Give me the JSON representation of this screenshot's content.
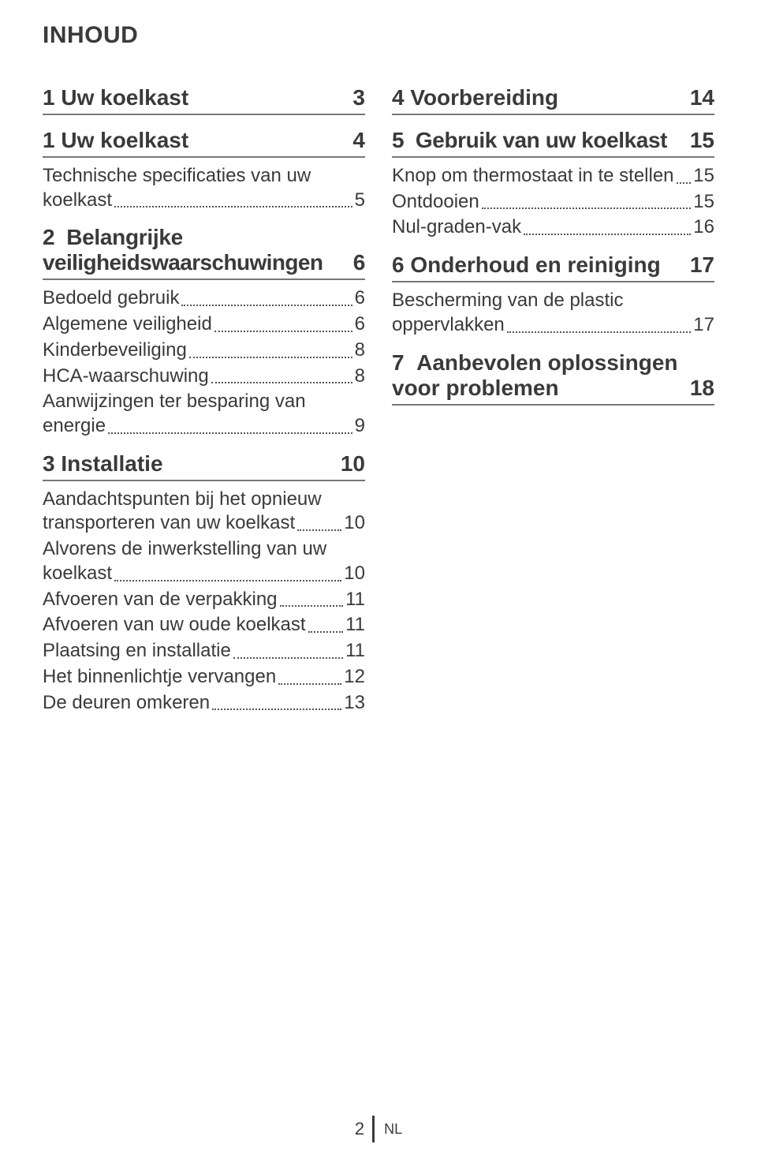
{
  "title": "INHOUD",
  "footer": {
    "page": "2",
    "lang": "NL"
  },
  "colors": {
    "text": "#3a3a3a",
    "rule": "#777777",
    "dots": "#555555",
    "bg": "#ffffff"
  },
  "typography": {
    "title_size": 30,
    "section_size": 28,
    "entry_size": 24,
    "footer_size": 22
  },
  "left": {
    "s1": {
      "title": "1  Uw koelkast",
      "page": "3"
    },
    "s1b": {
      "title": "1  Uw koelkast",
      "page": "4"
    },
    "s1b_e1": {
      "l1": "Technische specificaties van uw",
      "l2": "koelkast",
      "page": "5"
    },
    "s2": {
      "title": "2  Belangrijke veiligheidswaarschuwingen",
      "page": "6"
    },
    "s2_e1": {
      "label": "Bedoeld gebruik",
      "page": "6"
    },
    "s2_e2": {
      "label": "Algemene veiligheid",
      "page": "6"
    },
    "s2_e3": {
      "label": "Kinderbeveiliging",
      "page": "8"
    },
    "s2_e4": {
      "label": "HCA-waarschuwing",
      "page": "8"
    },
    "s2_e5": {
      "l1": "Aanwijzingen ter besparing van",
      "l2": "energie",
      "page": "9"
    },
    "s3": {
      "title": "3  Installatie",
      "page": "10"
    },
    "s3_e1": {
      "l1": "Aandachtspunten bij het opnieuw",
      "l2": "transporteren van uw koelkast",
      "page": "10"
    },
    "s3_e2": {
      "l1": "Alvorens de inwerkstelling van uw",
      "l2": "koelkast",
      "page": "10"
    },
    "s3_e3": {
      "label": "Afvoeren van de verpakking",
      "page": "11"
    },
    "s3_e4": {
      "label": "Afvoeren van uw oude koelkast",
      "page": "11"
    },
    "s3_e5": {
      "label": "Plaatsing en installatie",
      "page": "11"
    },
    "s3_e6": {
      "label": "Het binnenlichtje vervangen",
      "page": "12"
    },
    "s3_e7": {
      "label": "De deuren omkeren",
      "page": "13"
    }
  },
  "right": {
    "s4": {
      "title": "4  Voorbereiding",
      "page": "14"
    },
    "s5": {
      "title": "5  Gebruik van uw koelkast",
      "page": "15"
    },
    "s5_e1": {
      "label": "Knop om thermostaat in te stellen",
      "page": "15"
    },
    "s5_e2": {
      "label": "Ontdooien",
      "page": "15"
    },
    "s5_e3": {
      "label": "Nul-graden-vak",
      "page": "16"
    },
    "s6": {
      "title": "6  Onderhoud en reiniging",
      "page": "17"
    },
    "s6_e1": {
      "l1": "Bescherming van de plastic",
      "l2": "oppervlakken",
      "page": "17"
    },
    "s7": {
      "title": "7  Aanbevolen oplossingen voor problemen",
      "page": "18"
    }
  }
}
